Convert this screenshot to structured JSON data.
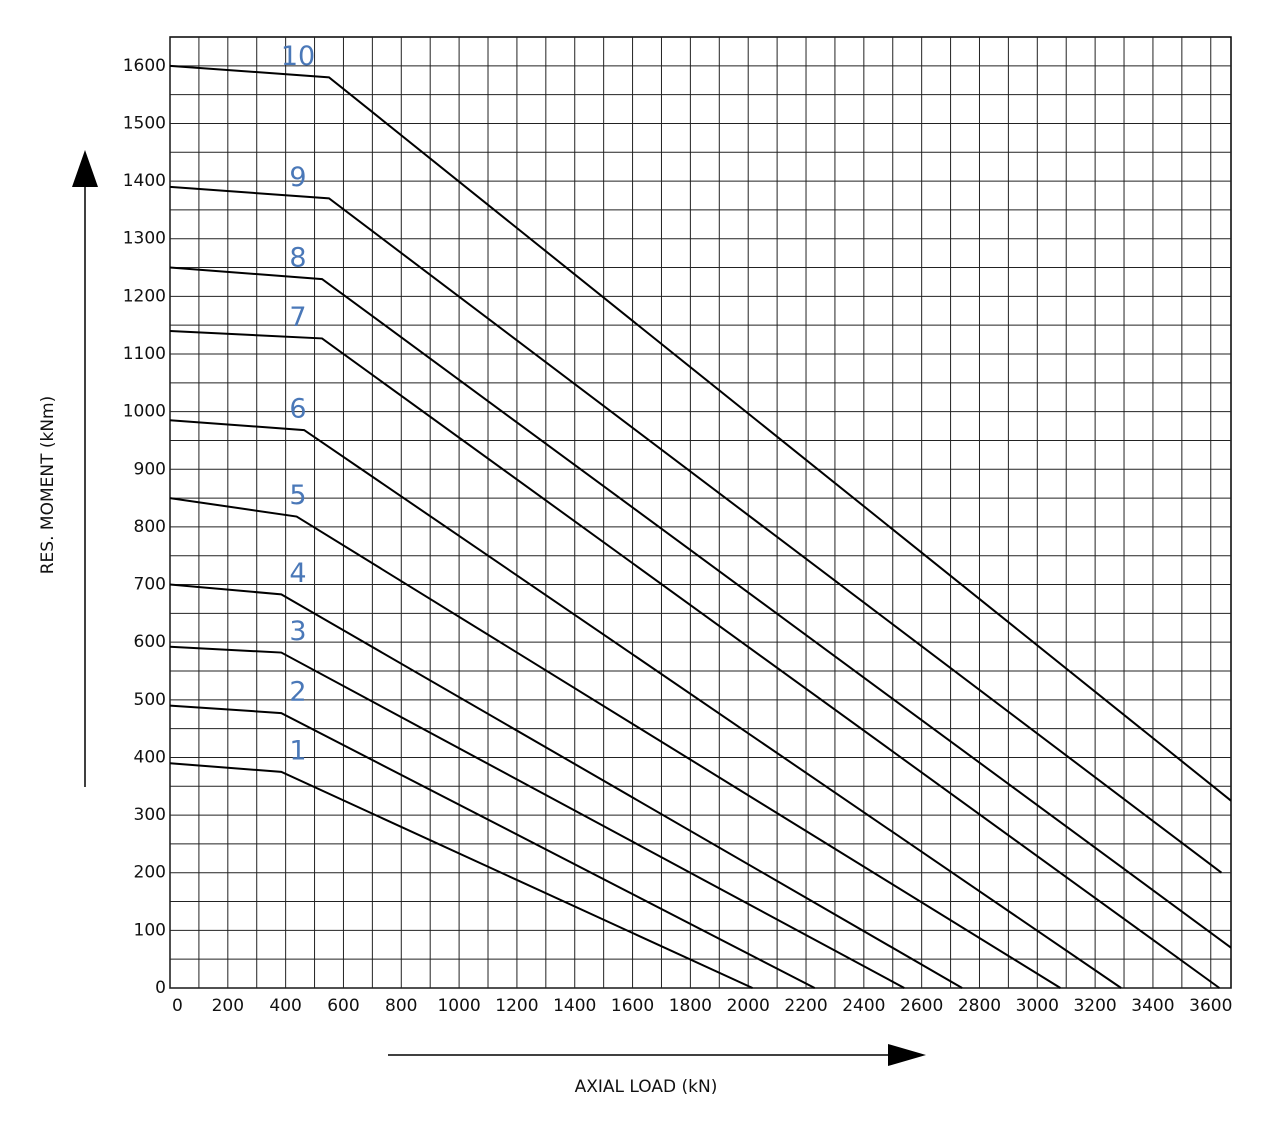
{
  "chart_data": {
    "type": "line",
    "x_label": "AXIAL LOAD (kN)",
    "y_label": "RES. MOMENT (kNm)",
    "xlim": [
      0,
      3670
    ],
    "ylim": [
      0,
      1650
    ],
    "xticks": [
      0,
      200,
      400,
      600,
      800,
      1000,
      1200,
      1400,
      1600,
      1800,
      2000,
      2200,
      2400,
      2600,
      2800,
      3000,
      3200,
      3400,
      3600
    ],
    "yticks": [
      0,
      100,
      200,
      300,
      400,
      500,
      600,
      700,
      800,
      900,
      1000,
      1100,
      1200,
      1300,
      1400,
      1500,
      1600
    ],
    "grid": true,
    "color": "#000000",
    "label_color": "#4a78b8",
    "series": [
      {
        "name": "1",
        "x": [
          0,
          385,
          2015
        ],
        "values": [
          390,
          375,
          0
        ]
      },
      {
        "name": "2",
        "x": [
          0,
          385,
          2230
        ],
        "values": [
          490,
          477,
          0
        ]
      },
      {
        "name": "3",
        "x": [
          0,
          385,
          2540
        ],
        "values": [
          592,
          582,
          0
        ]
      },
      {
        "name": "4",
        "x": [
          0,
          385,
          2740
        ],
        "values": [
          700,
          683,
          0
        ]
      },
      {
        "name": "5",
        "x": [
          0,
          438,
          3080
        ],
        "values": [
          850,
          818,
          0
        ]
      },
      {
        "name": "6",
        "x": [
          0,
          464,
          3290
        ],
        "values": [
          985,
          968,
          0
        ]
      },
      {
        "name": "7",
        "x": [
          0,
          526,
          3630
        ],
        "values": [
          1140,
          1127,
          0
        ]
      },
      {
        "name": "8",
        "x": [
          0,
          526,
          3670
        ],
        "values": [
          1250,
          1230,
          70
        ]
      },
      {
        "name": "9",
        "x": [
          0,
          550,
          3637
        ],
        "values": [
          1390,
          1370,
          200
        ]
      },
      {
        "name": "10",
        "x": [
          0,
          550,
          3670
        ],
        "values": [
          1600,
          1580,
          325
        ]
      }
    ]
  }
}
